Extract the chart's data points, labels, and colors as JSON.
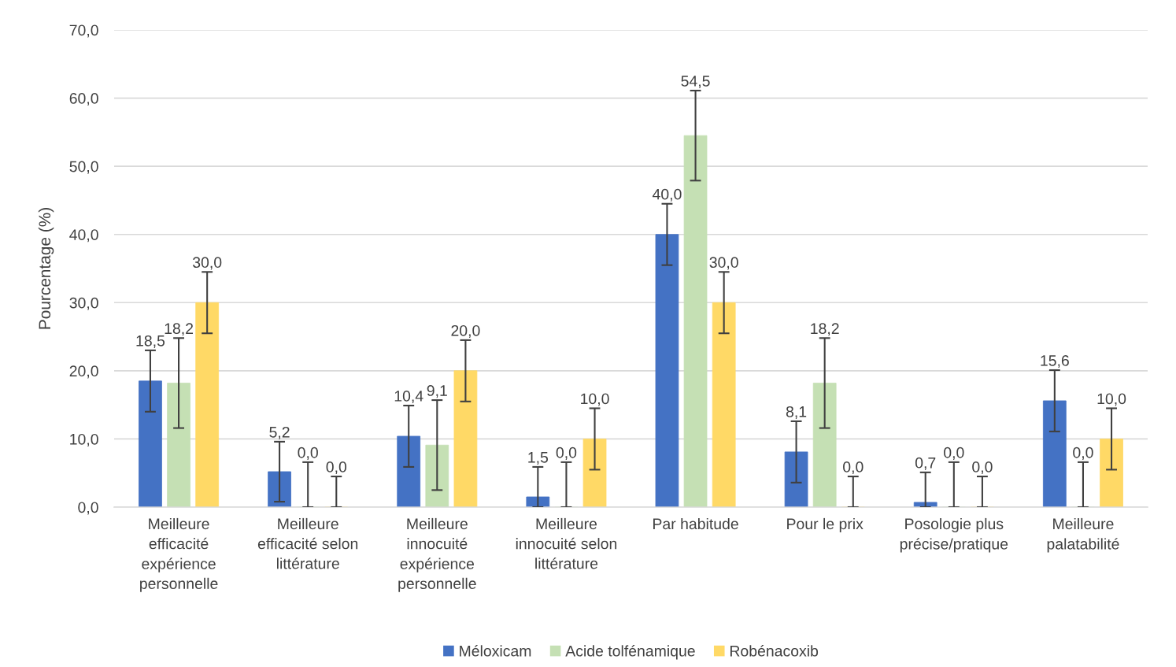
{
  "chart_data": {
    "type": "bar",
    "ylabel": "Pourcentage (%)",
    "categories": [
      "Meilleure\nefficacité\nexpérience\npersonnelle",
      "Meilleure\nefficacité selon\nlittérature",
      "Meilleure\ninnocuité\nexpérience\npersonnelle",
      "Meilleure\ninnocuité selon\nlittérature",
      "Par habitude",
      "Pour le prix",
      "Posologie plus\nprécise/pratique",
      "Meilleure\npalatabilité"
    ],
    "series": [
      {
        "name": "Méloxicam",
        "color": "#4472c4",
        "values": [
          18.5,
          5.2,
          10.4,
          1.5,
          40.0,
          8.1,
          0.7,
          15.6
        ],
        "value_labels": [
          "18,5",
          "5,2",
          "10,4",
          "1,5",
          "40,0",
          "8,1",
          "0,7",
          "15,6"
        ],
        "errors": [
          [
            14.0,
            23.0
          ],
          [
            0.8,
            9.6
          ],
          [
            5.9,
            14.9
          ],
          [
            0,
            5.9
          ],
          [
            35.5,
            44.5
          ],
          [
            3.6,
            12.6
          ],
          [
            0,
            5.1
          ],
          [
            11.1,
            20.1
          ]
        ]
      },
      {
        "name": "Acide tolfénamique",
        "color": "#c5e0b4",
        "values": [
          18.2,
          0.0,
          9.1,
          0.0,
          54.5,
          18.2,
          0.0,
          0.0
        ],
        "value_labels": [
          "18,2",
          "0,0",
          "9,1",
          "0,0",
          "54,5",
          "18,2",
          "0,0",
          "0,0"
        ],
        "errors": [
          [
            11.6,
            24.8
          ],
          [
            0,
            6.6
          ],
          [
            2.5,
            15.7
          ],
          [
            0,
            6.6
          ],
          [
            47.9,
            61.1
          ],
          [
            11.6,
            24.8
          ],
          [
            0,
            6.6
          ],
          [
            0,
            6.6
          ]
        ]
      },
      {
        "name": "Robénacoxib",
        "color": "#ffd966",
        "values": [
          30.0,
          0.0,
          20.0,
          10.0,
          30.0,
          0.0,
          0.0,
          10.0
        ],
        "value_labels": [
          "30,0",
          "0,0",
          "20,0",
          "10,0",
          "30,0",
          "0,0",
          "0,0",
          "10,0"
        ],
        "errors": [
          [
            25.5,
            34.5
          ],
          [
            0,
            4.5
          ],
          [
            15.5,
            24.5
          ],
          [
            5.5,
            14.5
          ],
          [
            25.5,
            34.5
          ],
          [
            0,
            4.5
          ],
          [
            0,
            4.5
          ],
          [
            5.5,
            14.5
          ]
        ]
      }
    ],
    "ylim": [
      0,
      70
    ],
    "yticks": [
      {
        "value": 0,
        "label": "0,0"
      },
      {
        "value": 10,
        "label": "10,0"
      },
      {
        "value": 20,
        "label": "20,0"
      },
      {
        "value": 30,
        "label": "30,0"
      },
      {
        "value": 40,
        "label": "40,0"
      },
      {
        "value": 50,
        "label": "50,0"
      },
      {
        "value": 60,
        "label": "60,0"
      },
      {
        "value": 70,
        "label": "70,0"
      }
    ],
    "grid": "y",
    "legend": "bottom"
  }
}
